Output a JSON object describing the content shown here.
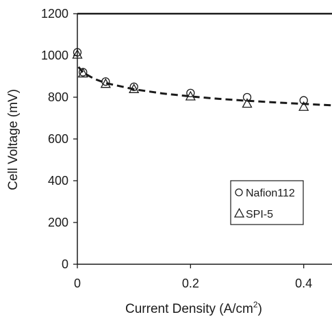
{
  "chart_data": {
    "type": "scatter",
    "xlabel": "Current Density (A/cm",
    "xlabel_sup": "2",
    "xlabel_suffix": ")",
    "ylabel": "Cell Voltage  (mV)",
    "xlim": [
      0,
      0.45
    ],
    "ylim": [
      0,
      1200
    ],
    "xticks": [
      0,
      0.2,
      0.4
    ],
    "xtick_labels": [
      "0",
      "0.2",
      "0.4"
    ],
    "yticks": [
      0,
      200,
      400,
      600,
      800,
      1000,
      1200
    ],
    "ytick_labels": [
      "0",
      "200",
      "400",
      "600",
      "800",
      "1000",
      "1200"
    ],
    "grid": false,
    "legend_position": "bottom-right",
    "series": [
      {
        "name": "Nafion112",
        "marker": "circle",
        "color": "#1a1a1a",
        "x": [
          0,
          0.01,
          0.05,
          0.1,
          0.2,
          0.3,
          0.4
        ],
        "y": [
          1015,
          920,
          875,
          850,
          820,
          800,
          785
        ]
      },
      {
        "name": "SPI-5",
        "marker": "triangle",
        "color": "#1a1a1a",
        "x": [
          0,
          0.01,
          0.05,
          0.1,
          0.2,
          0.3,
          0.4
        ],
        "y": [
          1005,
          915,
          865,
          840,
          805,
          770,
          755
        ]
      }
    ],
    "fit_curve": {
      "style": "dashed",
      "color": "#1a1a1a",
      "x": [
        0.002,
        0.01,
        0.03,
        0.05,
        0.1,
        0.15,
        0.2,
        0.25,
        0.3,
        0.35,
        0.4,
        0.45
      ],
      "y": [
        945,
        918,
        888,
        868,
        838,
        818,
        804,
        792,
        783,
        775,
        768,
        761
      ]
    }
  }
}
